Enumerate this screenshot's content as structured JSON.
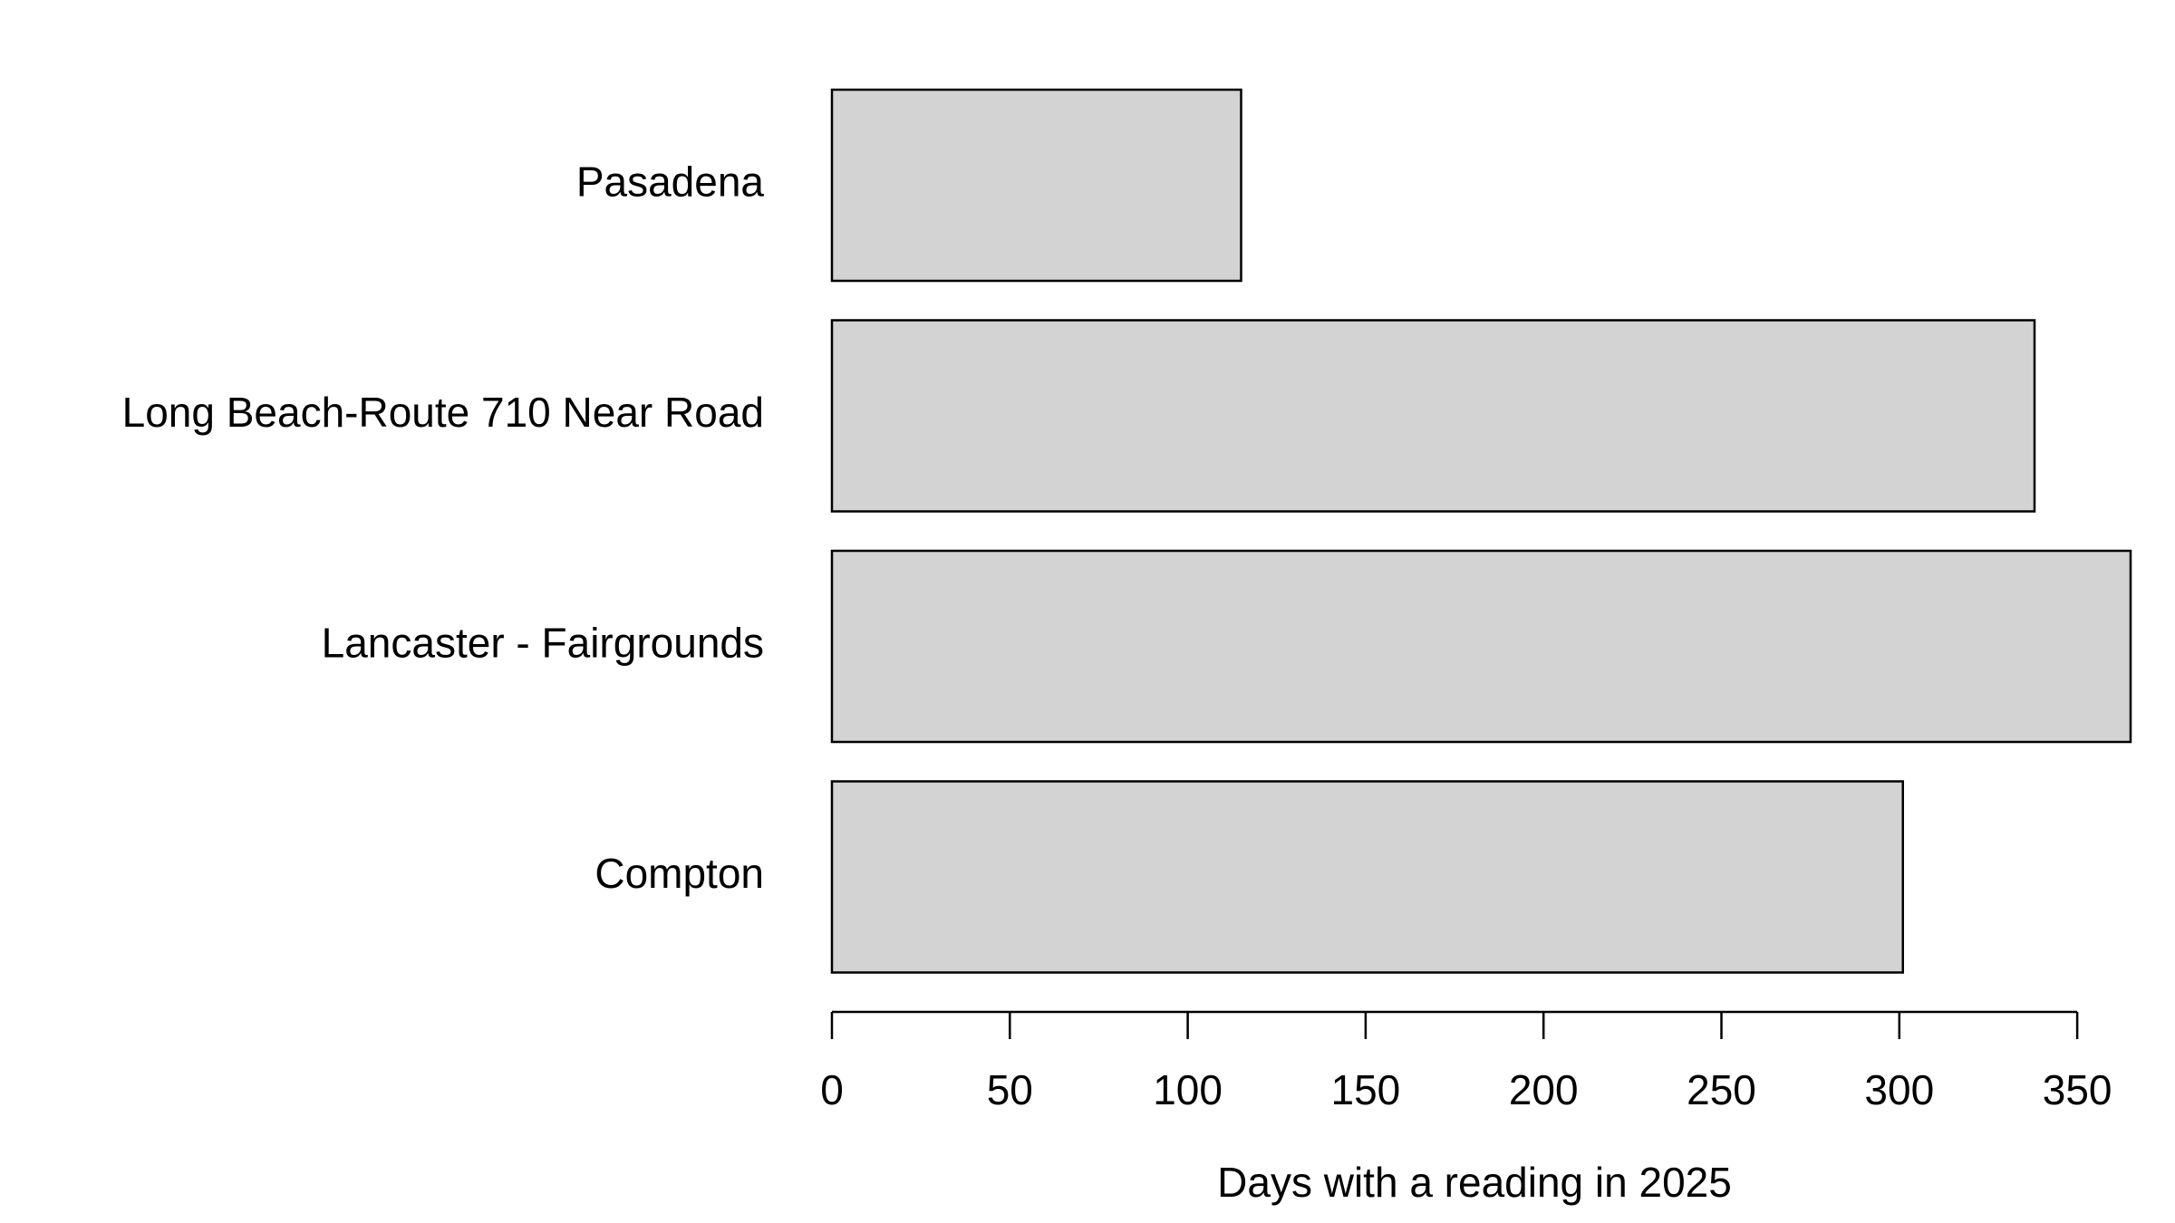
{
  "chart_data": {
    "type": "bar",
    "orientation": "horizontal",
    "x_label": "Days with a reading in 2025",
    "categories": [
      "Pasadena",
      "Long Beach-Route 710 Near Road",
      "Lancaster - Fairgrounds",
      "Compton"
    ],
    "values": [
      115,
      338,
      365,
      301
    ],
    "color": "#d3d3d3",
    "xlim": [
      0,
      365
    ],
    "xticks": [
      0,
      50,
      100,
      150,
      200,
      250,
      300,
      350
    ],
    "grid": false
  }
}
